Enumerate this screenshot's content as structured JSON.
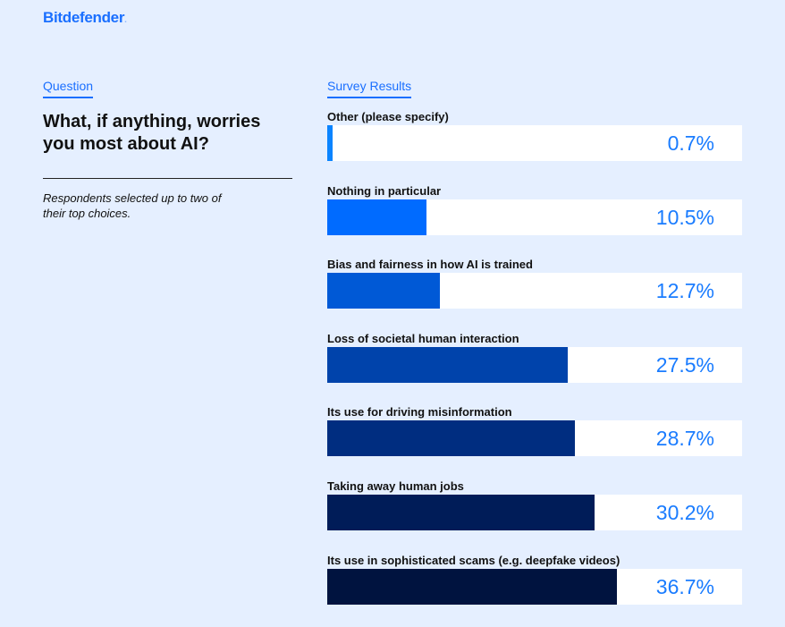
{
  "brand": {
    "name": "Bitdefender",
    "mark": "."
  },
  "question": {
    "section_label": "Question",
    "title": "What, if anything, worries you most about AI?",
    "note": "Respondents selected up to two of their top choices."
  },
  "results": {
    "section_label": "Survey Results"
  },
  "chart_data": {
    "type": "bar",
    "orientation": "horizontal",
    "title": "What, if anything, worries you most about AI?",
    "unit": "%",
    "categories": [
      "Other (please specify)",
      "Nothing in particular",
      "Bias and fairness in how AI is trained",
      "Loss of societal human interaction",
      "Its use for driving misinformation",
      "Taking away human jobs",
      "Its use in sophisticated scams (e.g. deepfake videos)"
    ],
    "values": [
      0.7,
      10.5,
      12.7,
      27.5,
      28.7,
      30.2,
      36.7
    ],
    "labels": [
      "0.7%",
      "10.5%",
      "12.7%",
      "27.5%",
      "28.7%",
      "30.2%",
      "36.7%"
    ],
    "fill": [
      0.013,
      0.239,
      0.272,
      0.58,
      0.597,
      0.644,
      0.698
    ],
    "colors": [
      "#0a84ff",
      "#006bff",
      "#0059d6",
      "#0043ab",
      "#002d80",
      "#001c58",
      "#00133f"
    ]
  }
}
